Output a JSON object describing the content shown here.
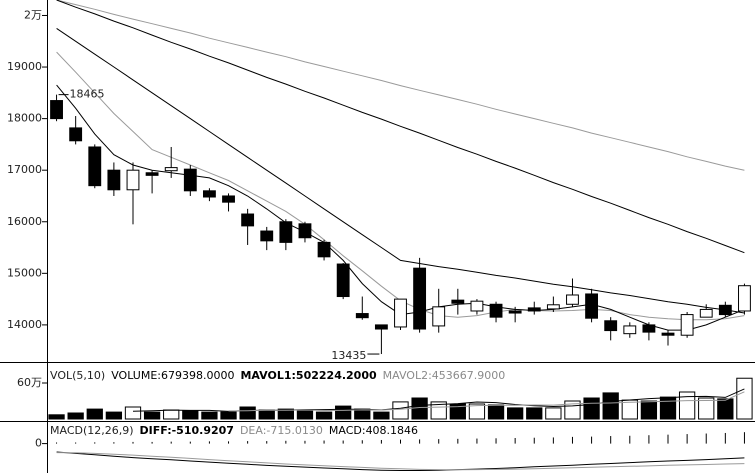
{
  "chart_data": [
    {
      "type": "candlestick",
      "open": [
        18350,
        17820,
        17450,
        17000,
        16620,
        16950,
        16990,
        17020,
        16600,
        16500,
        16150,
        15820,
        16000,
        15960,
        15600,
        15180,
        14220,
        14000,
        13960,
        15100,
        13980,
        14480,
        14270,
        14400,
        14270,
        14330,
        14310,
        14400,
        14600,
        14080,
        13830,
        14000,
        13840,
        13800,
        14150,
        14380,
        14270
      ],
      "high": [
        18465,
        18050,
        17500,
        17150,
        17150,
        17000,
        17450,
        17100,
        16650,
        16550,
        16250,
        15900,
        16050,
        16000,
        15650,
        15200,
        14550,
        14000,
        14500,
        15300,
        14700,
        14700,
        14500,
        14450,
        14350,
        14450,
        14550,
        14900,
        14700,
        14150,
        14050,
        14050,
        13900,
        14250,
        14400,
        14450,
        14800
      ],
      "low": [
        17950,
        17500,
        16650,
        16500,
        15950,
        16550,
        16850,
        16500,
        16400,
        16200,
        15550,
        15450,
        15450,
        15600,
        15250,
        14500,
        14100,
        13435,
        13900,
        13850,
        13850,
        14200,
        14200,
        14050,
        14050,
        14200,
        14250,
        14350,
        14050,
        13700,
        13750,
        13700,
        13600,
        13750,
        14150,
        14150,
        14200
      ],
      "close": [
        18000,
        17570,
        16700,
        16620,
        17000,
        16900,
        17050,
        16600,
        16480,
        16380,
        15920,
        15630,
        15600,
        15690,
        15320,
        14550,
        14140,
        13920,
        14500,
        13920,
        14350,
        14420,
        14460,
        14150,
        14230,
        14270,
        14390,
        14580,
        14130,
        13890,
        13980,
        13860,
        13800,
        14200,
        14300,
        14200,
        14760
      ],
      "up_color": "#ffffff",
      "down_color": "#000000",
      "lines": [
        {
          "color": "#9a9a9a",
          "values": [
            20300,
            20210,
            20120,
            20020,
            19930,
            19840,
            19750,
            19660,
            19560,
            19470,
            19380,
            19290,
            19200,
            19100,
            19010,
            18920,
            18830,
            18740,
            18640,
            18550,
            18460,
            18370,
            18280,
            18180,
            18090,
            18000,
            17910,
            17820,
            17720,
            17630,
            17540,
            17450,
            17360,
            17260,
            17170,
            17080,
            17000
          ]
        },
        {
          "color": "#000000",
          "values": [
            20300,
            20160,
            20030,
            19890,
            19760,
            19620,
            19480,
            19350,
            19210,
            19080,
            18940,
            18800,
            18670,
            18530,
            18400,
            18260,
            18120,
            17990,
            17850,
            17720,
            17580,
            17440,
            17310,
            17170,
            17040,
            16900,
            16760,
            16630,
            16490,
            16360,
            16220,
            16080,
            15950,
            15810,
            15680,
            15540,
            15400
          ]
        },
        {
          "color": "#000000",
          "values": [
            19750,
            19500,
            19250,
            19000,
            18750,
            18500,
            18250,
            18000,
            17750,
            17500,
            17250,
            17000,
            16750,
            16500,
            16250,
            16000,
            15750,
            15500,
            15250,
            15190,
            15130,
            15080,
            15020,
            14960,
            14910,
            14850,
            14790,
            14740,
            14680,
            14620,
            14570,
            14510,
            14450,
            14400,
            14340,
            14290,
            14230
          ]
        },
        {
          "color": "#9a9a9a",
          "values": [
            19290,
            18900,
            18500,
            18100,
            17750,
            17400,
            17250,
            17100,
            16950,
            16800,
            16600,
            16400,
            16200,
            15950,
            15650,
            15340,
            15050,
            14750,
            14470,
            14300,
            14180,
            14150,
            14180,
            14250,
            14300,
            14280,
            14270,
            14280,
            14300,
            14280,
            14200,
            14150,
            14120,
            14100,
            14100,
            14120,
            14180
          ]
        },
        {
          "color": "#000000",
          "values": [
            18650,
            18200,
            17700,
            17300,
            17100,
            17000,
            16950,
            16900,
            16850,
            16700,
            16500,
            16250,
            15980,
            15800,
            15600,
            15250,
            14800,
            14450,
            14200,
            14250,
            14350,
            14400,
            14420,
            14350,
            14300,
            14280,
            14300,
            14350,
            14400,
            14300,
            14150,
            14000,
            13900,
            13900,
            14000,
            14150,
            14300
          ]
        }
      ],
      "ylim": [
        13300,
        20300
      ],
      "yticks": [
        {
          "value": 20000,
          "label": "2万"
        },
        19000,
        18000,
        17000,
        16000,
        15000,
        14000
      ]
    },
    {
      "type": "bar",
      "title": "VOL(5,10)",
      "readouts": [
        {
          "name": "VOLUME:",
          "label": "679398.0000",
          "color": "#000000",
          "bold": false
        },
        {
          "name": "MAVOL1:",
          "label": "502224.2000",
          "color": "#000000",
          "bold": true
        },
        {
          "name": "MAVOL2:",
          "label": "453667.9000",
          "color": "#8a8a8a",
          "bold": false
        }
      ],
      "values": [
        70000,
        100000,
        165000,
        115000,
        200000,
        115000,
        150000,
        135000,
        115000,
        115000,
        200000,
        150000,
        165000,
        150000,
        115000,
        215000,
        165000,
        115000,
        285000,
        350000,
        285000,
        250000,
        250000,
        235000,
        185000,
        185000,
        185000,
        300000,
        350000,
        435000,
        315000,
        300000,
        365000,
        450000,
        350000,
        335000,
        679398
      ],
      "lines": [
        {
          "color": "#000000",
          "values": [
            null,
            null,
            null,
            null,
            130000,
            139000,
            149000,
            143000,
            143000,
            126000,
            143000,
            143000,
            149000,
            156000,
            156000,
            161000,
            162000,
            152000,
            179000,
            226000,
            242000,
            257000,
            284000,
            274000,
            241000,
            221000,
            208000,
            218000,
            241000,
            291000,
            317000,
            340000,
            353000,
            373000,
            376000,
            360000,
            502224.2
          ]
        },
        {
          "color": "#9a9a9a",
          "values": [
            null,
            null,
            null,
            null,
            null,
            null,
            null,
            null,
            null,
            135000,
            138000,
            146000,
            146000,
            150000,
            141000,
            144000,
            152000,
            150000,
            164000,
            191000,
            199000,
            207000,
            223000,
            229000,
            228000,
            234000,
            232000,
            251000,
            262000,
            266000,
            279000,
            288000,
            297000,
            307000,
            308000,
            312000,
            453667.9
          ]
        }
      ],
      "ylim": [
        0,
        850000
      ],
      "yticks": [
        {
          "value": 600000,
          "label": "60万"
        }
      ]
    },
    {
      "type": "macd",
      "title": "MACD(12,26,9)",
      "readouts": [
        {
          "name": "DIFF:",
          "label": "-510.9207",
          "color": "#000000",
          "bold": true
        },
        {
          "name": "DEA:",
          "label": "-715.0130",
          "color": "#8a8a8a",
          "bold": false
        },
        {
          "name": "MACD:",
          "label": "408.1846",
          "color": "#000000",
          "bold": false
        }
      ],
      "values": [
        40,
        40,
        45,
        50,
        60,
        60,
        70,
        70,
        80,
        80,
        90,
        90,
        100,
        100,
        110,
        110,
        120,
        130,
        140,
        150,
        160,
        170,
        180,
        190,
        200,
        210,
        220,
        240,
        250,
        270,
        280,
        300,
        320,
        340,
        360,
        380,
        408.1846
      ],
      "lines": [
        {
          "color": "#000000",
          "values": [
            -300,
            -350,
            -400,
            -450,
            -500,
            -540,
            -580,
            -620,
            -660,
            -700,
            -740,
            -780,
            -810,
            -840,
            -870,
            -900,
            -930,
            -950,
            -960,
            -960,
            -950,
            -930,
            -910,
            -890,
            -860,
            -830,
            -800,
            -770,
            -740,
            -710,
            -680,
            -650,
            -620,
            -600,
            -570,
            -540,
            -510.9207
          ]
        },
        {
          "color": "#9a9a9a",
          "values": [
            -320,
            -330,
            -350,
            -380,
            -410,
            -450,
            -490,
            -530,
            -570,
            -610,
            -650,
            -690,
            -730,
            -760,
            -790,
            -820,
            -850,
            -880,
            -900,
            -920,
            -930,
            -935,
            -930,
            -920,
            -910,
            -895,
            -880,
            -860,
            -845,
            -830,
            -810,
            -795,
            -775,
            -760,
            -745,
            -730,
            -715.013
          ]
        }
      ],
      "ylim": [
        -1050,
        700
      ],
      "yticks": [
        0
      ]
    }
  ]
}
